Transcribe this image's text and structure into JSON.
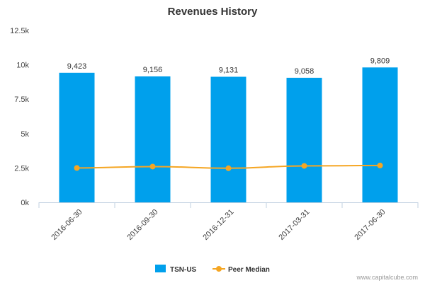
{
  "chart_data": {
    "type": "bar",
    "title": "Revenues History",
    "xlabel": "",
    "ylabel": "",
    "categories": [
      "2016-06-30",
      "2016-09-30",
      "2016-12-31",
      "2017-03-31",
      "2017-06-30"
    ],
    "ylim": [
      0,
      12500
    ],
    "yticks": [
      0,
      2500,
      5000,
      7500,
      10000,
      12500
    ],
    "ytick_labels": [
      "0k",
      "2.5k",
      "5k",
      "7.5k",
      "10k",
      "12.5k"
    ],
    "grid": false,
    "legend_position": "bottom-center",
    "series": [
      {
        "name": "TSN-US",
        "kind": "bar",
        "color": "#00a0ec",
        "values": [
          9423,
          9156,
          9131,
          9058,
          9809
        ],
        "data_labels": [
          "9,423",
          "9,156",
          "9,131",
          "9,058",
          "9,809"
        ]
      },
      {
        "name": "Peer Median",
        "kind": "line",
        "color": "#f5a623",
        "values": [
          2500,
          2600,
          2480,
          2650,
          2680
        ]
      }
    ]
  },
  "footer": {
    "credit": "www.capitalcube.com"
  }
}
